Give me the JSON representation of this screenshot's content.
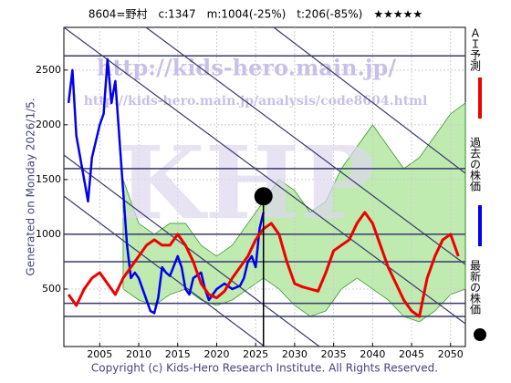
{
  "chart_data": {
    "type": "line",
    "title": "8604=野村　c:1347　m:1004(-25%)　t:206(-85%)　★★★★★",
    "subtitle": "Generated on Monday 2026/1/5.",
    "copyright": "Copyright (c) Kids-Hero Research Institute. All Rights Reserved.",
    "watermarks": [
      "http://kids-hero.main.jp/",
      "http://kids-hero.main.jp/analysis/code8604.html",
      "KHP"
    ],
    "xlim": [
      2000.4,
      2051.9
    ],
    "ylim": [
      -25,
      2890
    ],
    "xticks": [
      2005,
      2010,
      2015,
      2020,
      2025,
      2030,
      2035,
      2040,
      2045,
      2050
    ],
    "yticks": [
      500,
      1000,
      1500,
      2000,
      2500
    ],
    "levels": [
      2630,
      1600,
      1000,
      750,
      370,
      250
    ],
    "band": {
      "color": "#8ad870",
      "x": [
        2008,
        2010,
        2012,
        2014,
        2016,
        2018,
        2020,
        2022,
        2024,
        2026,
        2028,
        2030,
        2032,
        2034,
        2036,
        2038,
        2040,
        2042,
        2044,
        2046,
        2048,
        2050,
        2051.9
      ],
      "low": [
        500,
        400,
        350,
        450,
        500,
        400,
        350,
        400,
        500,
        600,
        500,
        350,
        250,
        300,
        500,
        600,
        500,
        400,
        250,
        200,
        300,
        450,
        500
      ],
      "high": [
        1500,
        1100,
        1000,
        1100,
        1100,
        900,
        800,
        900,
        1100,
        1300,
        1500,
        1400,
        1200,
        1300,
        1600,
        1800,
        2000,
        1800,
        1600,
        1700,
        1900,
        2100,
        2200
      ]
    },
    "series": [
      {
        "name": "過去の株価",
        "color": "#0000ee",
        "x": [
          2001,
          2001.5,
          2002,
          2003,
          2003.5,
          2004,
          2005,
          2005.5,
          2006,
          2006.5,
          2007,
          2007.5,
          2008,
          2008.5,
          2009,
          2009.5,
          2010,
          2010.5,
          2011,
          2011.5,
          2012,
          2012.5,
          2013,
          2013.5,
          2014,
          2015,
          2015.5,
          2016,
          2016.5,
          2017,
          2018,
          2018.5,
          2019,
          2019.5,
          2020,
          2021,
          2022,
          2023,
          2023.5,
          2024,
          2024.5,
          2025,
          2025.5,
          2026
        ],
        "values": [
          2200,
          2500,
          1900,
          1500,
          1300,
          1700,
          2000,
          2100,
          2600,
          2200,
          2400,
          1900,
          1400,
          900,
          600,
          650,
          600,
          500,
          400,
          300,
          280,
          420,
          700,
          650,
          620,
          800,
          700,
          500,
          450,
          600,
          650,
          500,
          400,
          450,
          500,
          550,
          500,
          530,
          600,
          750,
          800,
          700,
          1050,
          1200
        ]
      },
      {
        "name": "ＡＩ予測",
        "color": "#ee0000",
        "x": [
          2001,
          2002,
          2003,
          2004,
          2005,
          2006,
          2007,
          2008,
          2009,
          2010,
          2011,
          2012,
          2013,
          2014,
          2015,
          2016,
          2017,
          2018,
          2019,
          2020,
          2021,
          2022,
          2023,
          2024,
          2025,
          2026,
          2027,
          2028,
          2029,
          2030,
          2031,
          2032,
          2033,
          2034,
          2035,
          2036,
          2037,
          2038,
          2039,
          2040,
          2041,
          2042,
          2043,
          2044,
          2045,
          2046,
          2047,
          2048,
          2049,
          2050,
          2051
        ],
        "values": [
          450,
          350,
          500,
          600,
          650,
          550,
          450,
          600,
          700,
          800,
          900,
          950,
          900,
          900,
          1000,
          900,
          750,
          550,
          450,
          420,
          480,
          600,
          700,
          800,
          950,
          1050,
          1100,
          1000,
          750,
          550,
          520,
          500,
          480,
          650,
          850,
          900,
          950,
          1100,
          1200,
          1100,
          900,
          700,
          550,
          400,
          300,
          250,
          600,
          800,
          950,
          1000,
          800
        ]
      }
    ],
    "latest": {
      "name": "最新の株価",
      "x": 2026,
      "value": 1347,
      "color": "#000000"
    }
  }
}
